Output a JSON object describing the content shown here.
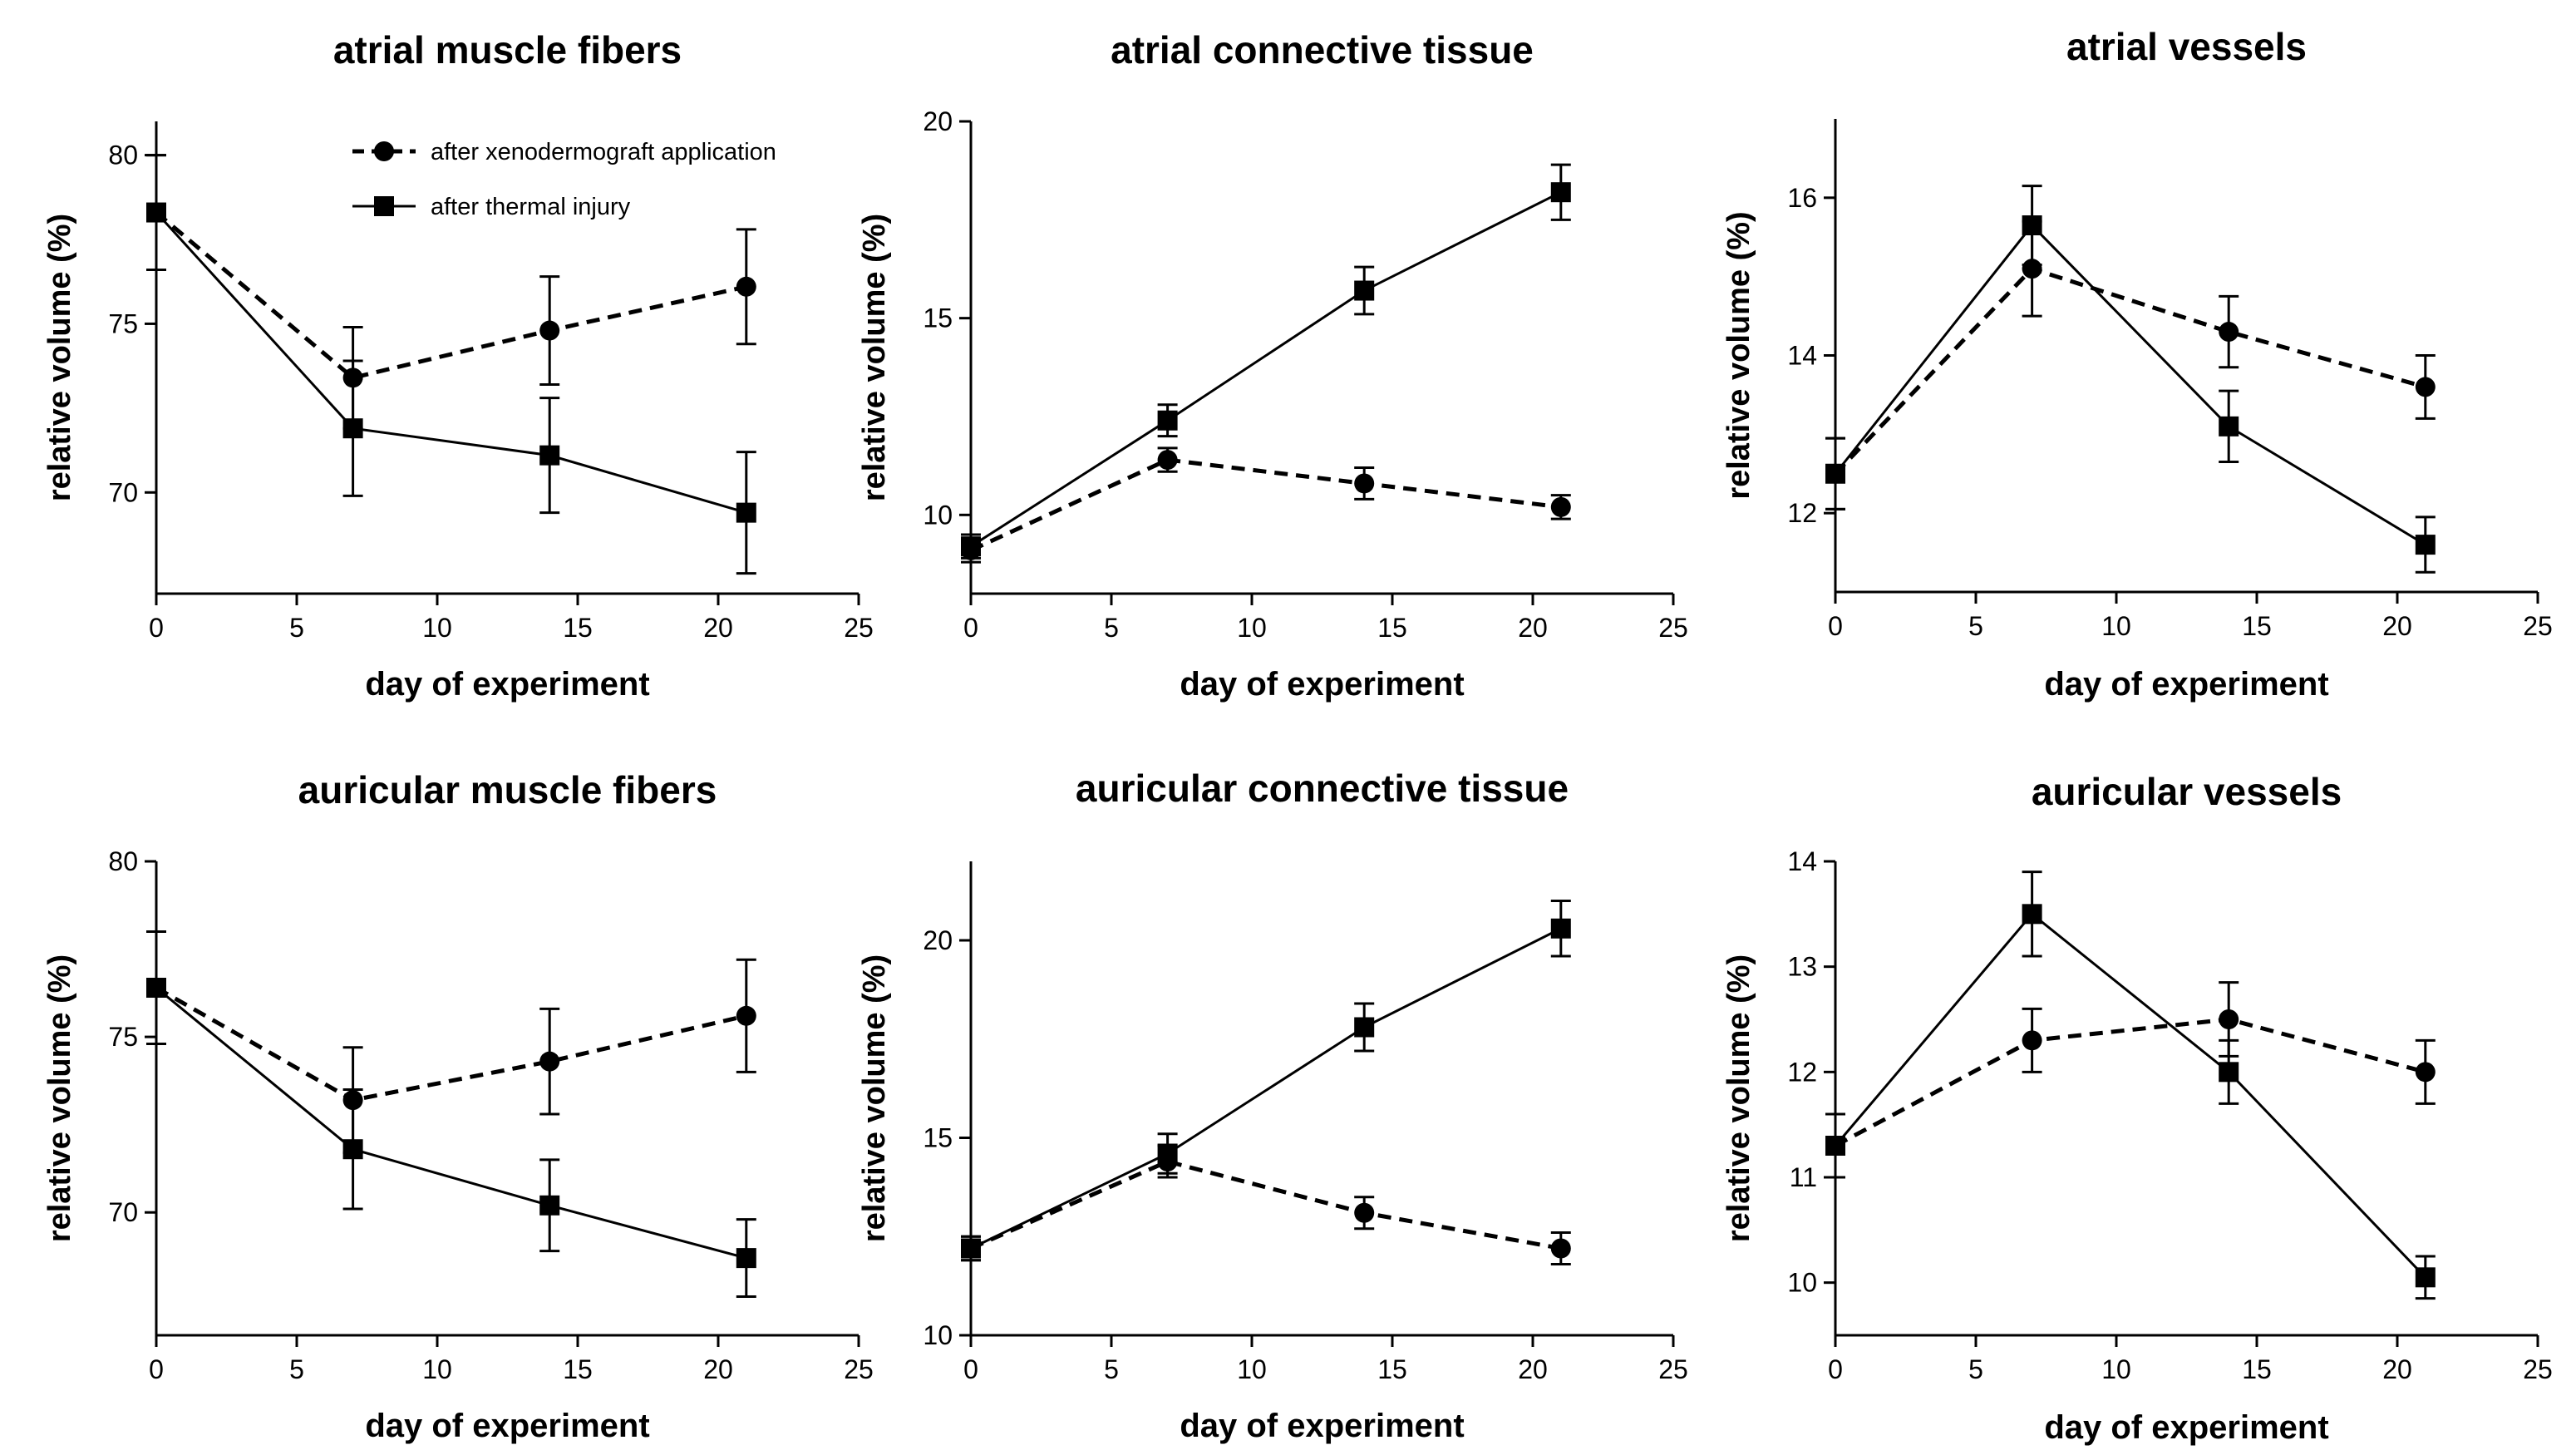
{
  "chart_data": [
    {
      "type": "line",
      "title": "atrial muscle fibers",
      "xlabel": "day of experiment",
      "ylabel": "relative volume (%)",
      "xlim": [
        0,
        25
      ],
      "ylim": [
        67,
        81
      ],
      "xticks": [
        0,
        5,
        10,
        15,
        20,
        25
      ],
      "yticks": [
        70,
        75,
        80
      ],
      "x": [
        0,
        7,
        14,
        21
      ],
      "legend": true,
      "series": [
        {
          "name": "after xenodermograft application",
          "style": "dashed",
          "marker": "circle",
          "values": [
            78.3,
            73.4,
            74.8,
            76.1
          ],
          "errors": [
            1.7,
            1.5,
            1.6,
            1.7
          ]
        },
        {
          "name": "after thermal injury",
          "style": "solid",
          "marker": "square",
          "values": [
            78.3,
            71.9,
            71.1,
            69.4
          ],
          "errors": [
            1.7,
            2.0,
            1.7,
            1.8
          ]
        }
      ]
    },
    {
      "type": "line",
      "title": "atrial connective tissue",
      "xlabel": "day of experiment",
      "ylabel": "relative volume (%)",
      "xlim": [
        0,
        25
      ],
      "ylim": [
        8,
        20
      ],
      "xticks": [
        0,
        5,
        10,
        15,
        20,
        25
      ],
      "yticks": [
        10,
        15,
        20
      ],
      "x": [
        0,
        7,
        14,
        21
      ],
      "series": [
        {
          "name": "after xenodermograft application",
          "style": "dashed",
          "marker": "circle",
          "values": [
            9.1,
            11.4,
            10.8,
            10.2
          ],
          "errors": [
            0.3,
            0.3,
            0.4,
            0.3
          ]
        },
        {
          "name": "after thermal injury",
          "style": "solid",
          "marker": "square",
          "values": [
            9.2,
            12.4,
            15.7,
            18.2
          ],
          "errors": [
            0.3,
            0.4,
            0.6,
            0.7
          ]
        }
      ]
    },
    {
      "type": "line",
      "title": "atrial vessels",
      "xlabel": "day of experiment",
      "ylabel": "relative volume (%)",
      "xlim": [
        0,
        25
      ],
      "ylim": [
        11,
        17
      ],
      "xticks": [
        0,
        5,
        10,
        15,
        20,
        25
      ],
      "yticks": [
        12,
        14,
        16
      ],
      "x": [
        0,
        7,
        14,
        21
      ],
      "series": [
        {
          "name": "after xenodermograft application",
          "style": "dashed",
          "marker": "circle",
          "values": [
            12.5,
            15.1,
            14.3,
            13.6
          ],
          "errors": [
            0.45,
            0.6,
            0.45,
            0.4
          ]
        },
        {
          "name": "after thermal injury",
          "style": "solid",
          "marker": "square",
          "values": [
            12.5,
            15.65,
            13.1,
            11.6
          ],
          "errors": [
            0.45,
            0.5,
            0.45,
            0.35
          ]
        }
      ]
    },
    {
      "type": "line",
      "title": "auricular muscle fibers",
      "xlabel": "day of experiment",
      "ylabel": "relative volume (%)",
      "xlim": [
        0,
        25
      ],
      "ylim": [
        66.5,
        80
      ],
      "xticks": [
        0,
        5,
        10,
        15,
        20,
        25
      ],
      "yticks": [
        70,
        75,
        80
      ],
      "x": [
        0,
        7,
        14,
        21
      ],
      "series": [
        {
          "name": "after xenodermograft application",
          "style": "dashed",
          "marker": "circle",
          "values": [
            76.4,
            73.2,
            74.3,
            75.6
          ],
          "errors": [
            1.6,
            1.5,
            1.5,
            1.6
          ]
        },
        {
          "name": "after thermal injury",
          "style": "solid",
          "marker": "square",
          "values": [
            76.4,
            71.8,
            70.2,
            68.7
          ],
          "errors": [
            1.6,
            1.7,
            1.3,
            1.1
          ]
        }
      ]
    },
    {
      "type": "line",
      "title": "auricular connective tissue",
      "xlabel": "day of experiment",
      "ylabel": "relative volume (%)",
      "xlim": [
        0,
        25
      ],
      "ylim": [
        10,
        22
      ],
      "xticks": [
        0,
        5,
        10,
        15,
        20,
        25
      ],
      "yticks": [
        10,
        15,
        20
      ],
      "x": [
        0,
        7,
        14,
        21
      ],
      "series": [
        {
          "name": "after xenodermograft application",
          "style": "dashed",
          "marker": "circle",
          "values": [
            12.2,
            14.4,
            13.1,
            12.2
          ],
          "errors": [
            0.3,
            0.4,
            0.4,
            0.4
          ]
        },
        {
          "name": "after thermal injury",
          "style": "solid",
          "marker": "square",
          "values": [
            12.2,
            14.6,
            17.8,
            20.3
          ],
          "errors": [
            0.3,
            0.5,
            0.6,
            0.7
          ]
        }
      ]
    },
    {
      "type": "line",
      "title": "auricular vessels",
      "xlabel": "day of experiment",
      "ylabel": "relative volume (%)",
      "xlim": [
        0,
        25
      ],
      "ylim": [
        9.5,
        14
      ],
      "xticks": [
        0,
        5,
        10,
        15,
        20,
        25
      ],
      "yticks": [
        10,
        11,
        12,
        13,
        14
      ],
      "x": [
        0,
        7,
        14,
        21
      ],
      "series": [
        {
          "name": "after xenodermograft application",
          "style": "dashed",
          "marker": "circle",
          "values": [
            11.3,
            12.3,
            12.5,
            12.0
          ],
          "errors": [
            0.3,
            0.3,
            0.35,
            0.3
          ]
        },
        {
          "name": "after thermal injury",
          "style": "solid",
          "marker": "square",
          "values": [
            11.3,
            13.5,
            12.0,
            10.05
          ],
          "errors": [
            0.3,
            0.4,
            0.3,
            0.2
          ]
        }
      ]
    }
  ]
}
